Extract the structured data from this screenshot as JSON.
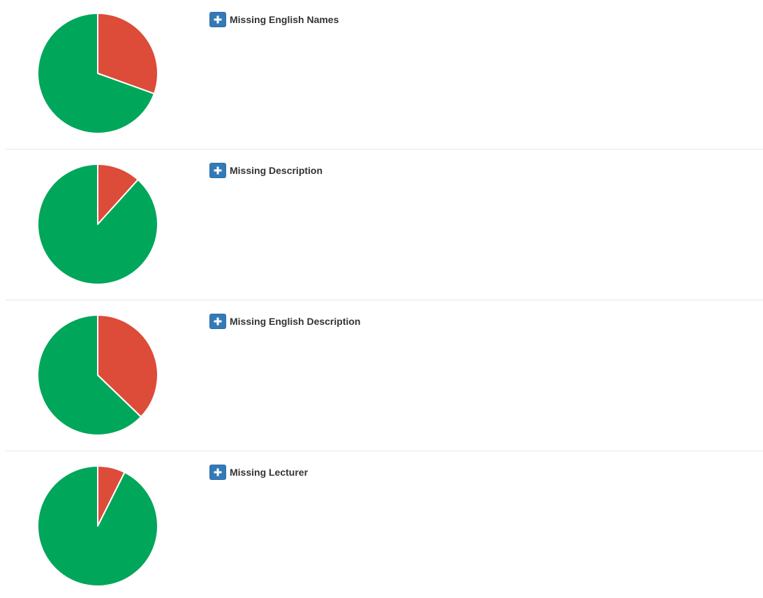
{
  "colors": {
    "missing": "#dd4b39",
    "complete": "#00a65a",
    "button": "#337ab7"
  },
  "rows": [
    {
      "title": "Missing English Names",
      "missing_fraction": 0.305
    },
    {
      "title": "Missing Description",
      "missing_fraction": 0.117
    },
    {
      "title": "Missing English Description",
      "missing_fraction": 0.372
    },
    {
      "title": "Missing Lecturer",
      "missing_fraction": 0.074
    }
  ],
  "chart_data": [
    {
      "type": "pie",
      "categories": [
        "missing",
        "complete"
      ],
      "values": [
        30.5,
        69.5
      ]
    },
    {
      "type": "pie",
      "categories": [
        "missing",
        "complete"
      ],
      "values": [
        11.7,
        88.3
      ]
    },
    {
      "type": "pie",
      "categories": [
        "missing",
        "complete"
      ],
      "values": [
        37.2,
        62.8
      ]
    },
    {
      "type": "pie",
      "categories": [
        "missing",
        "complete"
      ],
      "values": [
        7.4,
        92.6
      ]
    }
  ]
}
